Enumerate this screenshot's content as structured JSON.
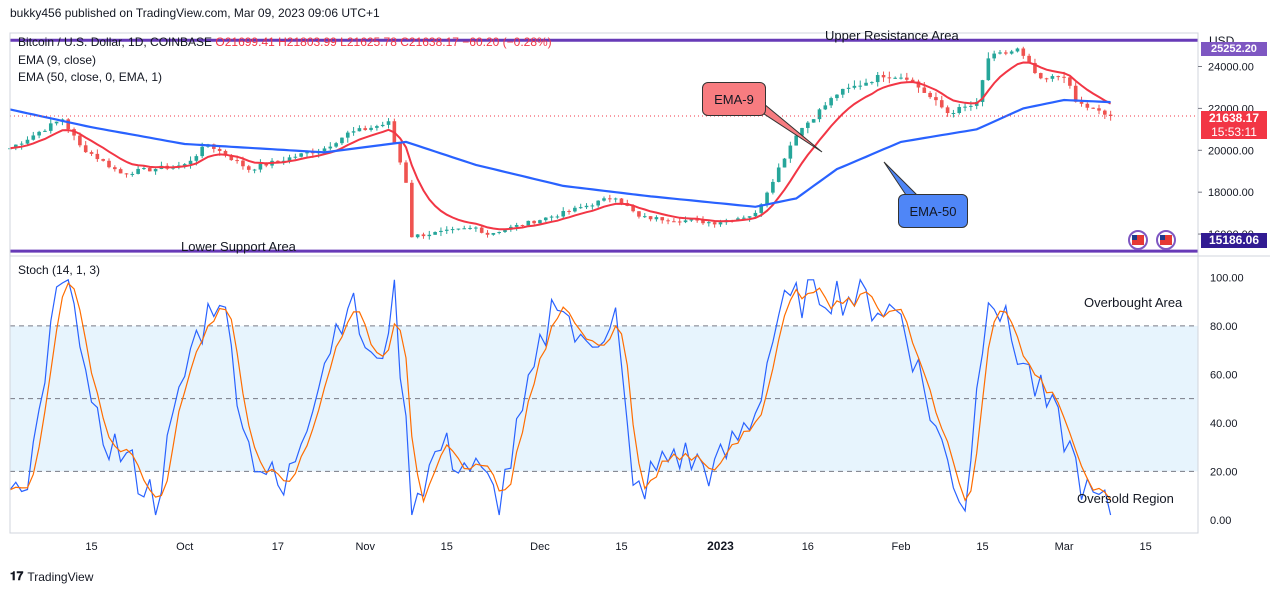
{
  "header": {
    "published": "bukky456 published on TradingView.com, Mar 09, 2023 09:06 UTC+1"
  },
  "footer": {
    "logo_label": "TradingView"
  },
  "legend": {
    "symbol": "Bitcoin / U.S. Dollar, 1D, COINBASE",
    "ohlc": "O21699.41 H21803.99 L21625.78 C21638.17 −60.20 (−0.28%)",
    "ema9": "EMA (9, close)",
    "ema50": "EMA (50, close, 0, EMA, 1)",
    "stoch": "Stoch (14, 1, 3)"
  },
  "annotations": {
    "upper_resistance": "Upper Resistance Area",
    "lower_support": "Lower Support Area",
    "ema9_callout": "EMA-9",
    "ema50_callout": "EMA-50",
    "overbought": "Overbought Area",
    "oversold": "Oversold Region"
  },
  "price_axis": {
    "currency": "USD",
    "last_price": "21638.17",
    "countdown": "15:53:11",
    "support_price": "15186.06",
    "resistance_price": "25252.20"
  },
  "colors": {
    "up": "#26a69a",
    "down": "#ef5350",
    "ema9": "#f23645",
    "ema50": "#2962ff",
    "level": "#673ab7",
    "stoch_k": "#2962ff",
    "stoch_d": "#ff6d00",
    "stoch_band": "#e3f2fd"
  },
  "chart_data": [
    {
      "type": "candlestick",
      "title": "Bitcoin / U.S. Dollar, 1D, COINBASE",
      "x_ticks": [
        "15",
        "Oct",
        "17",
        "Nov",
        "15",
        "Dec",
        "15",
        "2023",
        "16",
        "Feb",
        "15",
        "Mar",
        "15"
      ],
      "y_ticks": [
        "16000.00",
        "18000.00",
        "20000.00",
        "22000.00",
        "24000.00"
      ],
      "ylim": [
        15000,
        25600
      ],
      "levels": [
        {
          "name": "Upper Resistance Area",
          "value": 25252.2
        },
        {
          "name": "Lower Support Area",
          "value": 15186.06
        }
      ],
      "close_keypoints": [
        {
          "date": "2022-09-01",
          "close": 20100
        },
        {
          "date": "2022-09-10",
          "close": 21500
        },
        {
          "date": "2022-09-13",
          "close": 20200
        },
        {
          "date": "2022-09-20",
          "close": 18900
        },
        {
          "date": "2022-10-01",
          "close": 19300
        },
        {
          "date": "2022-10-05",
          "close": 20300
        },
        {
          "date": "2022-10-12",
          "close": 19100
        },
        {
          "date": "2022-10-25",
          "close": 20100
        },
        {
          "date": "2022-10-29",
          "close": 20800
        },
        {
          "date": "2022-11-05",
          "close": 21300
        },
        {
          "date": "2022-11-08",
          "close": 18500
        },
        {
          "date": "2022-11-09",
          "close": 15900
        },
        {
          "date": "2022-11-20",
          "close": 16300
        },
        {
          "date": "2022-11-22",
          "close": 16000
        },
        {
          "date": "2022-12-05",
          "close": 17000
        },
        {
          "date": "2022-12-14",
          "close": 17800
        },
        {
          "date": "2022-12-18",
          "close": 16800
        },
        {
          "date": "2022-12-31",
          "close": 16550
        },
        {
          "date": "2023-01-07",
          "close": 16950
        },
        {
          "date": "2023-01-14",
          "close": 20800
        },
        {
          "date": "2023-01-21",
          "close": 22700
        },
        {
          "date": "2023-01-29",
          "close": 23600
        },
        {
          "date": "2023-02-02",
          "close": 23500
        },
        {
          "date": "2023-02-09",
          "close": 21800
        },
        {
          "date": "2023-02-14",
          "close": 22200
        },
        {
          "date": "2023-02-16",
          "close": 24400
        },
        {
          "date": "2023-02-21",
          "close": 24800
        },
        {
          "date": "2023-02-25",
          "close": 23300
        },
        {
          "date": "2023-03-01",
          "close": 23600
        },
        {
          "date": "2023-03-03",
          "close": 22300
        },
        {
          "date": "2023-03-08",
          "close": 21700
        },
        {
          "date": "2023-03-09",
          "close": 21638.17
        }
      ],
      "ema50_keypoints": [
        {
          "date": "2022-09-01",
          "close": 21950
        },
        {
          "date": "2022-09-15",
          "close": 21100
        },
        {
          "date": "2022-10-01",
          "close": 20300
        },
        {
          "date": "2022-10-25",
          "close": 19900
        },
        {
          "date": "2022-11-08",
          "close": 20400
        },
        {
          "date": "2022-11-20",
          "close": 19300
        },
        {
          "date": "2022-12-05",
          "close": 18300
        },
        {
          "date": "2022-12-20",
          "close": 17800
        },
        {
          "date": "2023-01-07",
          "close": 17300
        },
        {
          "date": "2023-01-14",
          "close": 17700
        },
        {
          "date": "2023-01-21",
          "close": 19100
        },
        {
          "date": "2023-02-01",
          "close": 20400
        },
        {
          "date": "2023-02-14",
          "close": 21000
        },
        {
          "date": "2023-02-22",
          "close": 22000
        },
        {
          "date": "2023-03-01",
          "close": 22400
        },
        {
          "date": "2023-03-09",
          "close": 22300
        }
      ]
    },
    {
      "type": "line",
      "title": "Stoch (14, 1, 3)",
      "y_ticks": [
        "0.00",
        "20.00",
        "40.00",
        "60.00",
        "80.00",
        "100.00"
      ],
      "ylim": [
        -5,
        108
      ],
      "bands": [
        20,
        50,
        80
      ],
      "k_keypoints": [
        {
          "date": "2022-09-01",
          "value": 15
        },
        {
          "date": "2022-09-04",
          "value": 8
        },
        {
          "date": "2022-09-09",
          "value": 92
        },
        {
          "date": "2022-09-12",
          "value": 98
        },
        {
          "date": "2022-09-15",
          "value": 40
        },
        {
          "date": "2022-09-20",
          "value": 28
        },
        {
          "date": "2022-09-26",
          "value": 8
        },
        {
          "date": "2022-10-02",
          "value": 70
        },
        {
          "date": "2022-10-07",
          "value": 95
        },
        {
          "date": "2022-10-12",
          "value": 30
        },
        {
          "date": "2022-10-18",
          "value": 10
        },
        {
          "date": "2022-10-24",
          "value": 60
        },
        {
          "date": "2022-10-29",
          "value": 92
        },
        {
          "date": "2022-11-03",
          "value": 60
        },
        {
          "date": "2022-11-06",
          "value": 95
        },
        {
          "date": "2022-11-09",
          "value": 8
        },
        {
          "date": "2022-11-14",
          "value": 30
        },
        {
          "date": "2022-11-20",
          "value": 20
        },
        {
          "date": "2022-11-24",
          "value": 8
        },
        {
          "date": "2022-11-30",
          "value": 60
        },
        {
          "date": "2022-12-04",
          "value": 95
        },
        {
          "date": "2022-12-08",
          "value": 70
        },
        {
          "date": "2022-12-14",
          "value": 85
        },
        {
          "date": "2022-12-17",
          "value": 10
        },
        {
          "date": "2022-12-24",
          "value": 28
        },
        {
          "date": "2022-12-31",
          "value": 20
        },
        {
          "date": "2023-01-07",
          "value": 45
        },
        {
          "date": "2023-01-11",
          "value": 85
        },
        {
          "date": "2023-01-17",
          "value": 95
        },
        {
          "date": "2023-01-24",
          "value": 92
        },
        {
          "date": "2023-02-01",
          "value": 85
        },
        {
          "date": "2023-02-08",
          "value": 30
        },
        {
          "date": "2023-02-12",
          "value": 6
        },
        {
          "date": "2023-02-16",
          "value": 98
        },
        {
          "date": "2023-02-19",
          "value": 80
        },
        {
          "date": "2023-02-24",
          "value": 55
        },
        {
          "date": "2023-03-01",
          "value": 35
        },
        {
          "date": "2023-03-05",
          "value": 10
        },
        {
          "date": "2023-03-09",
          "value": 3
        }
      ]
    }
  ]
}
